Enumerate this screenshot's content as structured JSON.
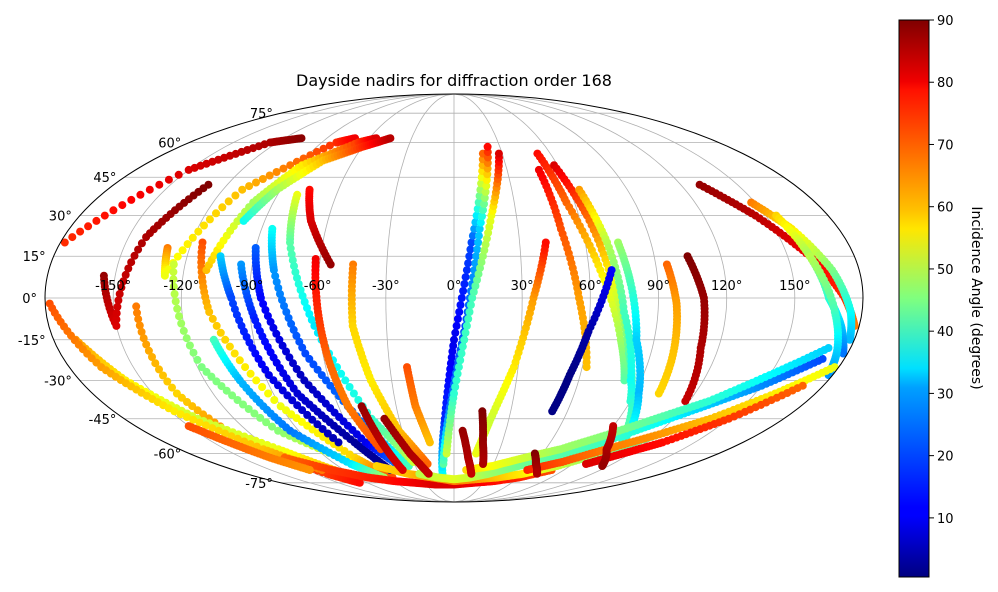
{
  "chart_data": {
    "type": "scatter",
    "projection": "mollweide",
    "title": "Dayside nadirs for diffraction order 168",
    "xlabel": "",
    "ylabel": "",
    "xlim": [
      -180,
      180
    ],
    "ylim": [
      -90,
      90
    ],
    "grid": true,
    "x_tick_labels": [
      "-150°",
      "-120°",
      "-90°",
      "-60°",
      "-30°",
      "0°",
      "30°",
      "60°",
      "90°",
      "120°",
      "150°"
    ],
    "x_tick_values": [
      -150,
      -120,
      -90,
      -60,
      -30,
      0,
      30,
      60,
      90,
      120,
      150
    ],
    "y_tick_labels": [
      "-75°",
      "-60°",
      "-45°",
      "-30°",
      "-15°",
      "0°",
      "15°",
      "30°",
      "45°",
      "60°",
      "75°"
    ],
    "y_tick_values": [
      -75,
      -60,
      -45,
      -30,
      -15,
      0,
      15,
      30,
      45,
      60,
      75
    ],
    "colorbar": {
      "label": "Incidence Angle (degrees)",
      "colormap": "jet",
      "range": [
        0.5,
        90
      ],
      "ticks": [
        10,
        20,
        30,
        40,
        50,
        60,
        70,
        80,
        90
      ],
      "tick_labels": [
        "10",
        "20",
        "30",
        "40",
        "50",
        "60",
        "70",
        "80",
        "90"
      ]
    },
    "tracks": [
      {
        "lon": [
          -178,
          -150,
          -125,
          -108
        ],
        "lat": [
          20,
          48,
          60,
          62
        ],
        "inc": [
          75,
          82,
          86,
          89
        ]
      },
      {
        "lon": [
          -155,
          -150,
          -142,
          -130
        ],
        "lat": [
          8,
          -10,
          22,
          42
        ],
        "inc": [
          88,
          82,
          86,
          90
        ]
      },
      {
        "lon": [
          -140,
          -138,
          -128,
          -110,
          -98
        ],
        "lat": [
          -3,
          -35,
          -58,
          -70,
          -75
        ],
        "inc": [
          68,
          60,
          70,
          74,
          78
        ]
      },
      {
        "lon": [
          -130,
          -128,
          -110,
          -80,
          -70
        ],
        "lat": [
          18,
          8,
          40,
          60,
          62
        ],
        "inc": [
          68,
          55,
          62,
          75,
          80
        ]
      },
      {
        "lon": [
          -125,
          -118,
          -102,
          -75,
          -62
        ],
        "lat": [
          12,
          -25,
          -50,
          -65,
          -72
        ],
        "inc": [
          52,
          45,
          46,
          58,
          70
        ]
      },
      {
        "lon": [
          -115,
          -108,
          -90,
          -70,
          -57
        ],
        "lat": [
          20,
          -5,
          -40,
          -62,
          -72
        ],
        "inc": [
          72,
          62,
          55,
          60,
          72
        ]
      },
      {
        "lon": [
          -110,
          -100,
          -88,
          -65,
          -55
        ],
        "lat": [
          10,
          35,
          50,
          60,
          62
        ],
        "inc": [
          62,
          48,
          58,
          74,
          82
        ]
      },
      {
        "lon": [
          -108,
          -103,
          -95,
          -78,
          -65
        ],
        "lat": [
          -15,
          -30,
          -50,
          -65,
          -72
        ],
        "inc": [
          40,
          28,
          22,
          32,
          48
        ]
      },
      {
        "lon": [
          -105,
          -98,
          -88,
          -72
        ],
        "lat": [
          15,
          0,
          -28,
          -55
        ],
        "inc": [
          30,
          18,
          10,
          5
        ]
      },
      {
        "lon": [
          -100,
          -92,
          -78,
          -60,
          -45
        ],
        "lat": [
          28,
          40,
          52,
          58,
          62
        ],
        "inc": [
          35,
          48,
          62,
          75,
          85
        ]
      },
      {
        "lon": [
          -95,
          -88,
          -78,
          -62,
          -52
        ],
        "lat": [
          12,
          -8,
          -35,
          -55,
          -68
        ],
        "inc": [
          25,
          14,
          8,
          3,
          2
        ]
      },
      {
        "lon": [
          -90,
          -85,
          -72,
          -55,
          -40
        ],
        "lat": [
          18,
          0,
          -30,
          -55,
          -68
        ],
        "inc": [
          20,
          12,
          6,
          10,
          25
        ]
      },
      {
        "lon": [
          -85,
          -80,
          -68,
          -50,
          -35
        ],
        "lat": [
          25,
          10,
          -20,
          -48,
          -66
        ],
        "inc": [
          35,
          25,
          18,
          22,
          40
        ]
      },
      {
        "lon": [
          -80,
          -75,
          -62,
          -45,
          -30
        ],
        "lat": [
          38,
          20,
          -10,
          -45,
          -64
        ],
        "inc": [
          55,
          42,
          32,
          38,
          52
        ]
      },
      {
        "lon": [
          -75,
          -68,
          -55
        ],
        "lat": [
          40,
          28,
          12
        ],
        "inc": [
          78,
          82,
          88
        ]
      },
      {
        "lon": [
          -62,
          -60,
          -58,
          -55,
          -48
        ],
        "lat": [
          14,
          -5,
          -22,
          -40,
          -58
        ],
        "inc": [
          80,
          75,
          70,
          68,
          72
        ]
      },
      {
        "lon": [
          -45,
          -45,
          -40,
          -32,
          -20
        ],
        "lat": [
          12,
          -10,
          -30,
          -50,
          -65
        ],
        "inc": [
          68,
          60,
          58,
          62,
          70
        ]
      },
      {
        "lon": [
          -22,
          -20,
          -15
        ],
        "lat": [
          -25,
          -40,
          -55
        ],
        "inc": [
          72,
          68,
          62
        ]
      },
      {
        "lon": [
          -10,
          -5,
          0,
          8,
          18
        ],
        "lat": [
          -70,
          -45,
          -15,
          20,
          55
        ],
        "inc": [
          35,
          15,
          10,
          18,
          70
        ]
      },
      {
        "lon": [
          -8,
          -2,
          5,
          12,
          22
        ],
        "lat": [
          -65,
          -40,
          -10,
          25,
          58
        ],
        "inc": [
          42,
          22,
          18,
          30,
          78
        ]
      },
      {
        "lon": [
          -5,
          0,
          8,
          18,
          28
        ],
        "lat": [
          -60,
          -35,
          0,
          30,
          55
        ],
        "inc": [
          52,
          38,
          40,
          55,
          82
        ]
      },
      {
        "lon": [
          15,
          20,
          28,
          35,
          42
        ],
        "lat": [
          -60,
          -45,
          -25,
          0,
          20
        ],
        "inc": [
          55,
          52,
          58,
          65,
          78
        ]
      },
      {
        "lon": [
          52,
          56,
          65,
          75,
          82
        ],
        "lat": [
          55,
          35,
          10,
          -15,
          -30
        ],
        "inc": [
          78,
          70,
          58,
          48,
          42
        ]
      },
      {
        "lon": [
          48,
          50,
          55,
          62
        ],
        "lat": [
          48,
          25,
          0,
          -25
        ],
        "inc": [
          80,
          72,
          65,
          62
        ]
      },
      {
        "lon": [
          58,
          64,
          70,
          80,
          90
        ],
        "lat": [
          50,
          30,
          5,
          -20,
          -38
        ],
        "inc": [
          82,
          70,
          55,
          42,
          38
        ]
      },
      {
        "lon": [
          65,
          70,
          75,
          85,
          100
        ],
        "lat": [
          40,
          20,
          -5,
          -30,
          -50
        ],
        "inc": [
          65,
          50,
          40,
          35,
          42
        ]
      },
      {
        "lon": [
          75,
          78,
          82,
          92,
          105
        ],
        "lat": [
          20,
          5,
          -15,
          -35,
          -55
        ],
        "inc": [
          48,
          40,
          30,
          28,
          38
        ]
      },
      {
        "lon": [
          70,
          60,
          55,
          52
        ],
        "lat": [
          10,
          -12,
          -28,
          -42
        ],
        "inc": [
          12,
          4,
          1,
          1
        ]
      },
      {
        "lon": [
          95,
          98,
          100,
          102
        ],
        "lat": [
          12,
          -2,
          -18,
          -35
        ],
        "inc": [
          70,
          65,
          62,
          60
        ]
      },
      {
        "lon": [
          105,
          110,
          112,
          118
        ],
        "lat": [
          15,
          0,
          -18,
          -38
        ],
        "inc": [
          90,
          88,
          86,
          84
        ]
      },
      {
        "lon": [
          130,
          145,
          160,
          172,
          178
        ],
        "lat": [
          42,
          30,
          15,
          0,
          -10
        ],
        "inc": [
          88,
          85,
          80,
          75,
          68
        ]
      },
      {
        "lon": [
          148,
          158,
          168,
          175,
          178
        ],
        "lat": [
          35,
          25,
          10,
          -5,
          -15
        ],
        "inc": [
          68,
          58,
          45,
          35,
          28
        ]
      },
      {
        "lon": [
          155,
          160,
          165,
          172,
          178
        ],
        "lat": [
          30,
          15,
          0,
          -10,
          -20
        ],
        "inc": [
          60,
          48,
          38,
          30,
          22
        ]
      },
      {
        "lon": [
          160,
          168,
          175,
          178
        ],
        "lat": [
          15,
          -5,
          -20,
          -28
        ],
        "inc": [
          50,
          40,
          30,
          25
        ]
      },
      {
        "lon": [
          -170,
          -158,
          -140,
          -115,
          -98
        ],
        "lat": [
          -15,
          -30,
          -45,
          -58,
          -68
        ],
        "inc": [
          65,
          58,
          52,
          55,
          62
        ]
      },
      {
        "lon": [
          -178,
          -165,
          -148,
          -125,
          -108
        ],
        "lat": [
          -2,
          -25,
          -42,
          -58,
          -68
        ],
        "inc": [
          72,
          65,
          58,
          62,
          68
        ]
      },
      {
        "lon": [
          -120,
          -100,
          -80,
          -60,
          -40,
          -20,
          0,
          20,
          40,
          60,
          80
        ],
        "lat": [
          -62,
          -68,
          -72,
          -74,
          -75,
          -76,
          -76,
          -75,
          -74,
          -72,
          -68
        ],
        "inc": [
          70,
          74,
          76,
          78,
          80,
          82,
          82,
          80,
          78,
          76,
          72
        ]
      },
      {
        "lon": [
          -60,
          -40,
          -20,
          0,
          20,
          40,
          60,
          80,
          100,
          120
        ],
        "lat": [
          -66,
          -70,
          -72,
          -74,
          -73,
          -72,
          -70,
          -66,
          -60,
          -52
        ],
        "inc": [
          60,
          62,
          66,
          68,
          66,
          62,
          58,
          52,
          46,
          40
        ]
      },
      {
        "lon": [
          -30,
          -15,
          0,
          15,
          30,
          50,
          70,
          90,
          110,
          130,
          150,
          170
        ],
        "lat": [
          -70,
          -72,
          -73,
          -72,
          -70,
          -66,
          -62,
          -56,
          -48,
          -40,
          -32,
          -22
        ],
        "inc": [
          50,
          52,
          54,
          52,
          48,
          44,
          42,
          40,
          36,
          30,
          24,
          18
        ]
      },
      {
        "lon": [
          10,
          30,
          50,
          70,
          90,
          110,
          130,
          150,
          170
        ],
        "lat": [
          -68,
          -66,
          -62,
          -58,
          -52,
          -45,
          -38,
          -28,
          -18
        ],
        "inc": [
          60,
          56,
          52,
          48,
          46,
          42,
          38,
          34,
          30
        ]
      },
      {
        "lon": [
          60,
          80,
          100,
          120,
          140,
          160,
          178
        ],
        "lat": [
          -68,
          -64,
          -58,
          -52,
          -45,
          -35,
          -25
        ],
        "inc": [
          76,
          72,
          68,
          66,
          62,
          58,
          55
        ]
      },
      {
        "lon": [
          100,
          115,
          130,
          150,
          170
        ],
        "lat": [
          -65,
          -60,
          -55,
          -45,
          -32
        ],
        "inc": [
          82,
          80,
          78,
          74,
          70
        ]
      },
      {
        "lon": [
          -48,
          -45,
          -42
        ],
        "lat": [
          -40,
          -55,
          -68
        ],
        "inc": [
          88,
          85,
          82
        ]
      },
      {
        "lon": [
          -38,
          -30,
          -22
        ],
        "lat": [
          -45,
          -60,
          -70
        ],
        "inc": [
          88,
          86,
          84
        ]
      },
      {
        "lon": [
          15,
          18,
          22
        ],
        "lat": [
          -42,
          -55,
          -65
        ],
        "inc": [
          90,
          88,
          86
        ]
      },
      {
        "lon": [
          5,
          10,
          15
        ],
        "lat": [
          -50,
          -62,
          -70
        ],
        "inc": [
          88,
          86,
          84
        ]
      },
      {
        "lon": [
          55,
          62,
          72
        ],
        "lat": [
          -60,
          -65,
          -70
        ],
        "inc": [
          90,
          88,
          86
        ]
      },
      {
        "lon": [
          90,
          100,
          115
        ],
        "lat": [
          -48,
          -58,
          -66
        ],
        "inc": [
          84,
          86,
          88
        ]
      },
      {
        "lon": [
          -150,
          -140,
          -130,
          -118
        ],
        "lat": [
          -48,
          -55,
          -62,
          -68
        ],
        "inc": [
          72,
          70,
          68,
          66
        ]
      }
    ]
  }
}
